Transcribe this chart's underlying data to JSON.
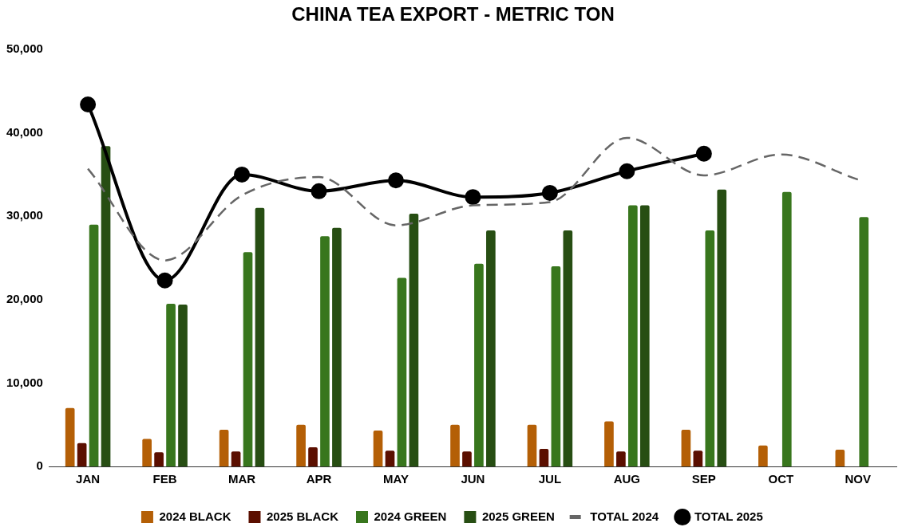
{
  "chart_data": {
    "type": "bar",
    "title": "CHINA TEA EXPORT - METRIC TON",
    "categories": [
      "JAN",
      "FEB",
      "MAR",
      "APR",
      "MAY",
      "JUN",
      "JUL",
      "AUG",
      "SEP",
      "OCT",
      "NOV"
    ],
    "series": [
      {
        "name": "2024 BLACK",
        "color": "#b45f06",
        "values": [
          7000,
          3300,
          4400,
          5000,
          4300,
          5000,
          5000,
          5400,
          4400,
          2500,
          2000
        ]
      },
      {
        "name": "2025 BLACK",
        "color": "#5b0f00",
        "values": [
          2800,
          1700,
          1800,
          2300,
          1900,
          1800,
          2100,
          1800,
          1900,
          null,
          null
        ]
      },
      {
        "name": "2024 GREEN",
        "color": "#38761d",
        "values": [
          29000,
          19500,
          25700,
          27600,
          22600,
          24300,
          24000,
          31300,
          28300,
          32900,
          29900
        ]
      },
      {
        "name": "2025 GREEN",
        "color": "#274e13",
        "values": [
          38400,
          19400,
          31000,
          28600,
          30300,
          28300,
          28300,
          31300,
          33200,
          null,
          null
        ]
      },
      {
        "name": "TOTAL 2024",
        "type": "line",
        "color": "#666666",
        "line_style": "dashed",
        "marker": "none",
        "values": [
          35700,
          24700,
          32500,
          34700,
          28900,
          31300,
          31700,
          39400,
          34900,
          37400,
          34400
        ]
      },
      {
        "name": "TOTAL 2025",
        "type": "line",
        "color": "#000000",
        "line_style": "solid",
        "marker": "circle",
        "values": [
          43400,
          22300,
          35000,
          33000,
          34300,
          32300,
          32800,
          35400,
          37500,
          null,
          null
        ]
      }
    ],
    "ylim": [
      0,
      50000
    ],
    "yticks": [
      0,
      {
        "value": 10000,
        "label": "10,000"
      },
      {
        "value": 20000,
        "label": "20,000"
      },
      {
        "value": 30000,
        "label": "30,000"
      },
      {
        "value": 40000,
        "label": "40,000"
      },
      {
        "value": 50000,
        "label": "50,000"
      }
    ],
    "grid": false,
    "legend": "bottom"
  }
}
